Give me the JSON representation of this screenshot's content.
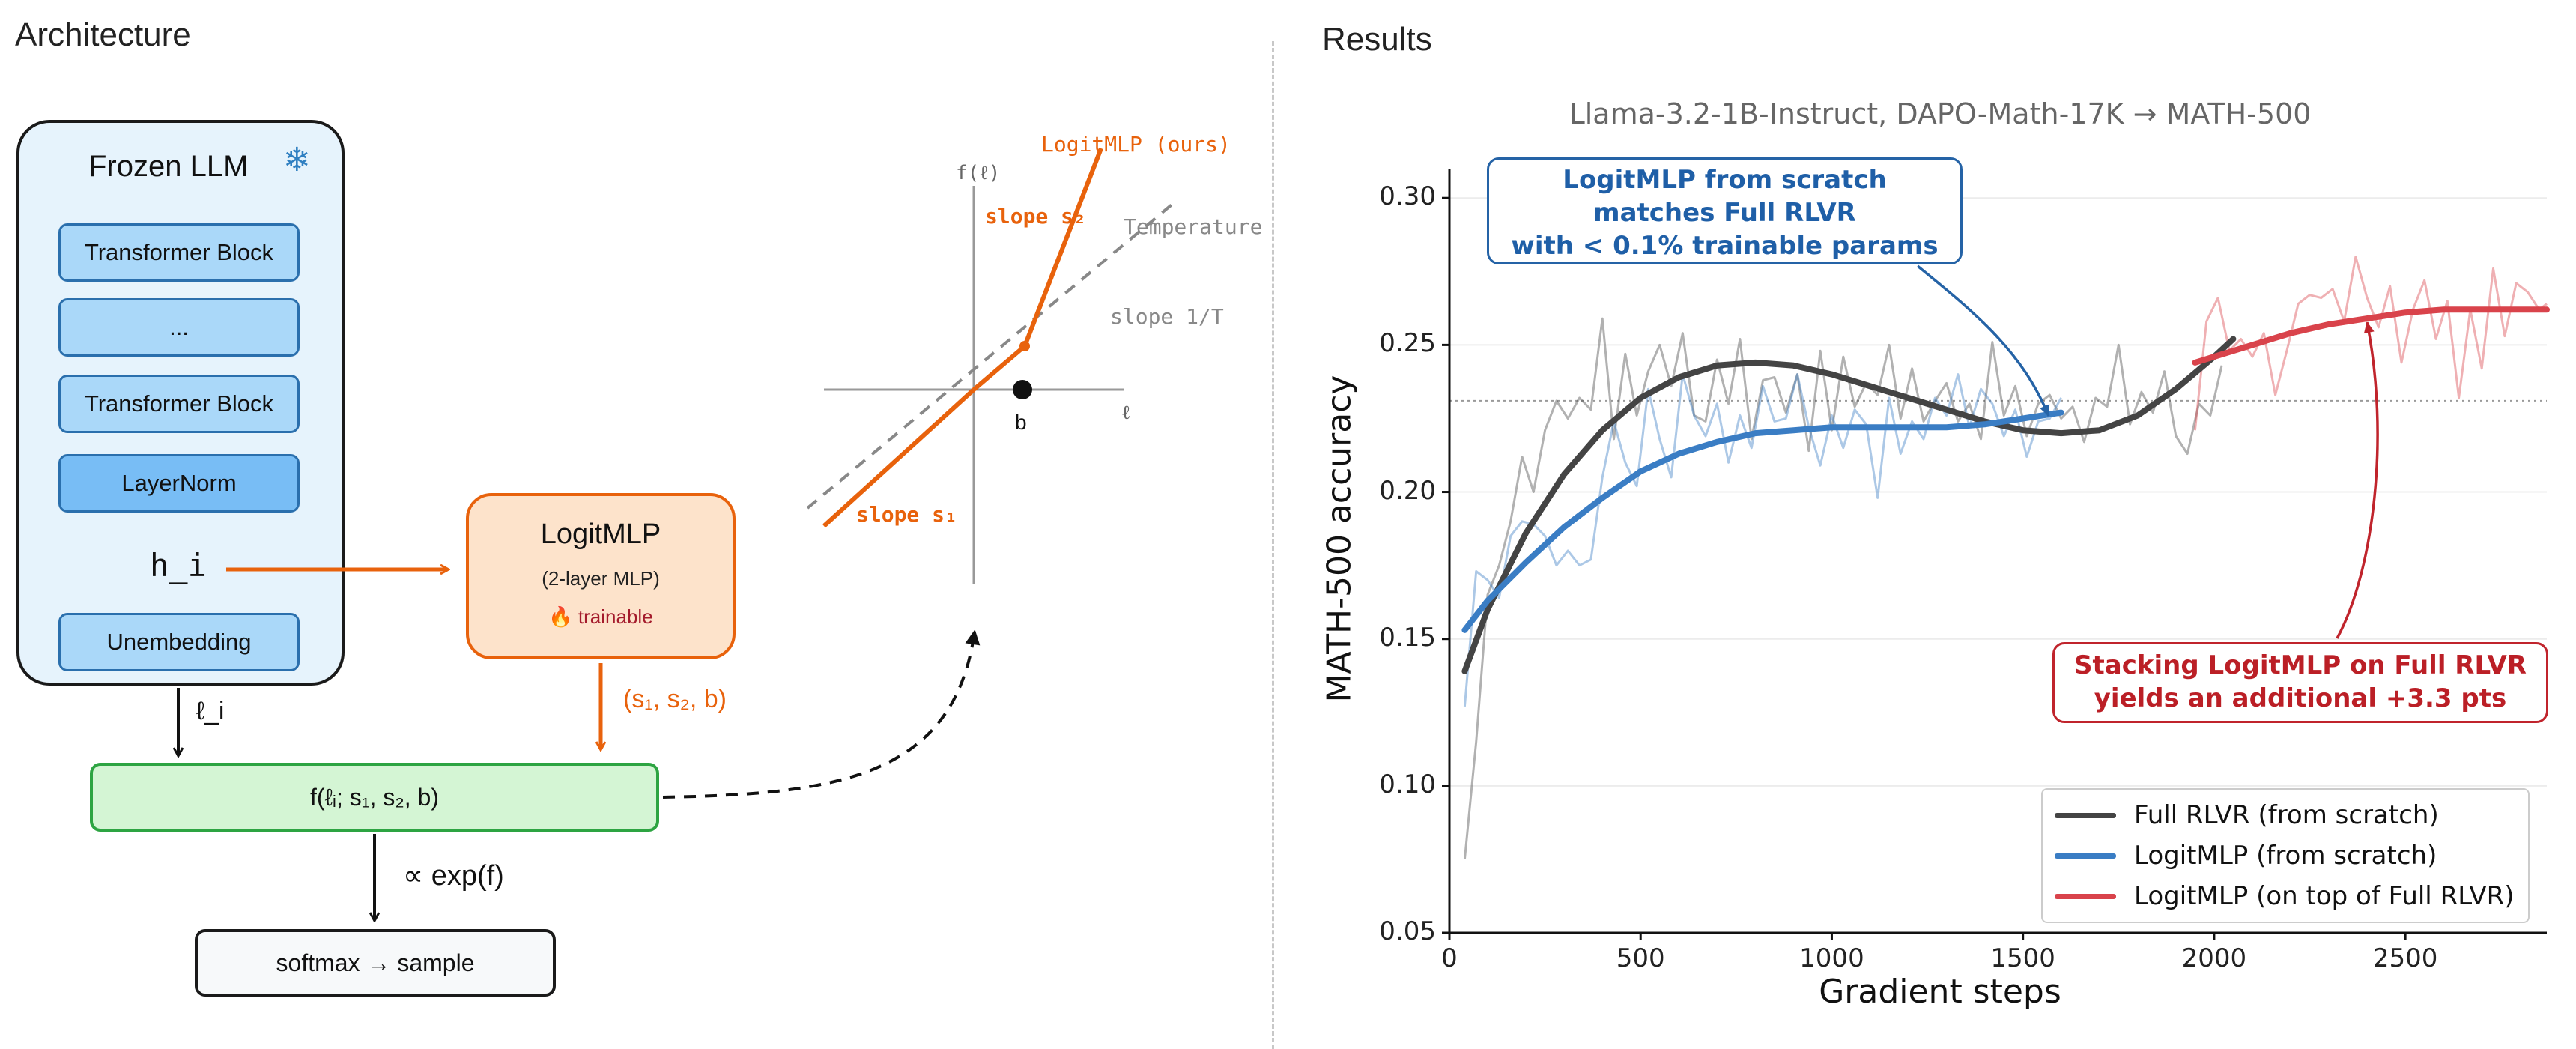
{
  "left_panel": {
    "title": "Architecture",
    "frozen_llm": {
      "title": "Frozen LLM",
      "blocks": [
        "Transformer Block",
        "...",
        "Transformer Block",
        "LayerNorm"
      ],
      "hidden_state": "h_i",
      "unembedding": "Unembedding"
    },
    "logit_label": "ℓ_i",
    "logitmlp": {
      "title": "LogitMLP",
      "subtitle": "(2-layer MLP)",
      "trainable": "🔥 trainable"
    },
    "params_label": "(s₁, s₂, b)",
    "function_box": "f(ℓᵢ; s₁, s₂, b)",
    "prop_label": "∝ exp(f)",
    "softmax_box": "softmax → sample",
    "inset": {
      "y_axis": "f(ℓ)",
      "x_axis": "ℓ",
      "b_label": "b",
      "logitmlp_label": "LogitMLP (ours)",
      "temperature_label": "Temperature",
      "slope_s2": "slope s₂",
      "slope_1T": "slope 1/T",
      "slope_s1": "slope s₁"
    }
  },
  "right_panel": {
    "title": "Results",
    "annotation_blue": [
      "LogitMLP from scratch",
      "matches Full RLVR",
      "with < 0.1% trainable params"
    ],
    "annotation_red": [
      "Stacking LogitMLP on Full RLVR",
      "yields an additional +3.3 pts"
    ]
  },
  "colors": {
    "full_rlvr": "#444444",
    "logitmlp": "#3a7dc4",
    "stacked": "#d9434b",
    "orange": "#e8620c",
    "green": "#2da442"
  },
  "chart_data": {
    "type": "line",
    "title": "Llama-3.2-1B-Instruct, DAPO-Math-17K  →  MATH-500",
    "xlabel": "Gradient steps",
    "ylabel": "MATH-500 accuracy",
    "xlim": [
      0,
      2870
    ],
    "ylim": [
      0.05,
      0.31
    ],
    "xticks": [
      0,
      500,
      1000,
      1500,
      2000,
      2500
    ],
    "yticks": [
      0.05,
      0.1,
      0.15,
      0.2,
      0.25,
      0.3
    ],
    "reference_line": 0.231,
    "grid": "horizontal",
    "legend_position": "bottom-right",
    "series": [
      {
        "name": "Full RLVR (from scratch)",
        "color": "#444444",
        "smooth": {
          "x": [
            40,
            100,
            200,
            300,
            400,
            500,
            600,
            700,
            800,
            900,
            1000,
            1100,
            1200,
            1300,
            1400,
            1500,
            1600,
            1700,
            1800,
            1900,
            2000,
            2050
          ],
          "y": [
            0.139,
            0.16,
            0.186,
            0.206,
            0.221,
            0.232,
            0.239,
            0.243,
            0.244,
            0.243,
            0.24,
            0.236,
            0.232,
            0.228,
            0.224,
            0.221,
            0.22,
            0.221,
            0.226,
            0.235,
            0.246,
            0.252
          ]
        },
        "raw": {
          "x": [
            40,
            70,
            100,
            130,
            160,
            190,
            220,
            250,
            280,
            310,
            340,
            370,
            400,
            430,
            460,
            490,
            520,
            550,
            580,
            610,
            640,
            670,
            700,
            730,
            760,
            790,
            820,
            850,
            880,
            910,
            940,
            970,
            1000,
            1030,
            1060,
            1090,
            1120,
            1150,
            1180,
            1210,
            1240,
            1270,
            1300,
            1330,
            1360,
            1390,
            1420,
            1450,
            1480,
            1510,
            1540,
            1570,
            1600,
            1630,
            1660,
            1690,
            1720,
            1750,
            1780,
            1810,
            1840,
            1870,
            1900,
            1930,
            1960,
            1990,
            2020
          ],
          "y": [
            0.075,
            0.115,
            0.165,
            0.175,
            0.19,
            0.212,
            0.2,
            0.221,
            0.231,
            0.225,
            0.232,
            0.228,
            0.259,
            0.218,
            0.247,
            0.226,
            0.241,
            0.25,
            0.236,
            0.254,
            0.226,
            0.224,
            0.245,
            0.23,
            0.252,
            0.218,
            0.238,
            0.239,
            0.227,
            0.24,
            0.214,
            0.248,
            0.221,
            0.246,
            0.229,
            0.237,
            0.233,
            0.25,
            0.225,
            0.242,
            0.224,
            0.231,
            0.237,
            0.224,
            0.23,
            0.218,
            0.251,
            0.226,
            0.236,
            0.219,
            0.23,
            0.233,
            0.225,
            0.229,
            0.217,
            0.232,
            0.229,
            0.25,
            0.223,
            0.234,
            0.227,
            0.241,
            0.219,
            0.213,
            0.23,
            0.226,
            0.243
          ]
        }
      },
      {
        "name": "LogitMLP (from scratch)",
        "color": "#3a7dc4",
        "smooth": {
          "x": [
            40,
            100,
            200,
            300,
            400,
            500,
            600,
            700,
            800,
            900,
            1000,
            1100,
            1200,
            1300,
            1400,
            1500,
            1600
          ],
          "y": [
            0.153,
            0.163,
            0.176,
            0.188,
            0.198,
            0.207,
            0.213,
            0.217,
            0.22,
            0.221,
            0.222,
            0.222,
            0.222,
            0.222,
            0.223,
            0.225,
            0.227
          ]
        },
        "raw": {
          "x": [
            40,
            70,
            100,
            130,
            160,
            190,
            220,
            250,
            280,
            310,
            340,
            370,
            400,
            430,
            460,
            490,
            520,
            550,
            580,
            610,
            640,
            670,
            700,
            730,
            760,
            790,
            820,
            850,
            880,
            910,
            940,
            970,
            1000,
            1030,
            1060,
            1090,
            1120,
            1150,
            1180,
            1210,
            1240,
            1270,
            1300,
            1330,
            1360,
            1390,
            1420,
            1450,
            1480,
            1510,
            1540,
            1570,
            1600
          ],
          "y": [
            0.127,
            0.173,
            0.17,
            0.164,
            0.185,
            0.19,
            0.189,
            0.185,
            0.175,
            0.18,
            0.175,
            0.177,
            0.205,
            0.224,
            0.21,
            0.202,
            0.235,
            0.218,
            0.205,
            0.24,
            0.226,
            0.219,
            0.23,
            0.21,
            0.226,
            0.215,
            0.236,
            0.224,
            0.225,
            0.24,
            0.222,
            0.209,
            0.226,
            0.215,
            0.228,
            0.223,
            0.198,
            0.232,
            0.213,
            0.224,
            0.218,
            0.232,
            0.226,
            0.24,
            0.222,
            0.235,
            0.23,
            0.219,
            0.228,
            0.212,
            0.224,
            0.225,
            0.232
          ]
        }
      },
      {
        "name": "LogitMLP (on top of Full RLVR)",
        "color": "#d9434b",
        "smooth": {
          "x": [
            1950,
            2000,
            2100,
            2200,
            2300,
            2400,
            2500,
            2600,
            2700,
            2800,
            2870
          ],
          "y": [
            0.244,
            0.246,
            0.25,
            0.254,
            0.257,
            0.259,
            0.261,
            0.262,
            0.262,
            0.262,
            0.262
          ]
        },
        "raw": {
          "x": [
            1950,
            1980,
            2010,
            2040,
            2070,
            2100,
            2130,
            2160,
            2190,
            2220,
            2250,
            2280,
            2310,
            2340,
            2370,
            2400,
            2430,
            2460,
            2490,
            2520,
            2550,
            2580,
            2610,
            2640,
            2670,
            2700,
            2730,
            2760,
            2790,
            2820,
            2850,
            2870
          ],
          "y": [
            0.221,
            0.258,
            0.266,
            0.248,
            0.252,
            0.246,
            0.254,
            0.233,
            0.248,
            0.264,
            0.267,
            0.266,
            0.269,
            0.258,
            0.28,
            0.266,
            0.256,
            0.27,
            0.244,
            0.262,
            0.272,
            0.252,
            0.265,
            0.232,
            0.262,
            0.242,
            0.276,
            0.253,
            0.271,
            0.268,
            0.262,
            0.264
          ]
        }
      }
    ]
  }
}
